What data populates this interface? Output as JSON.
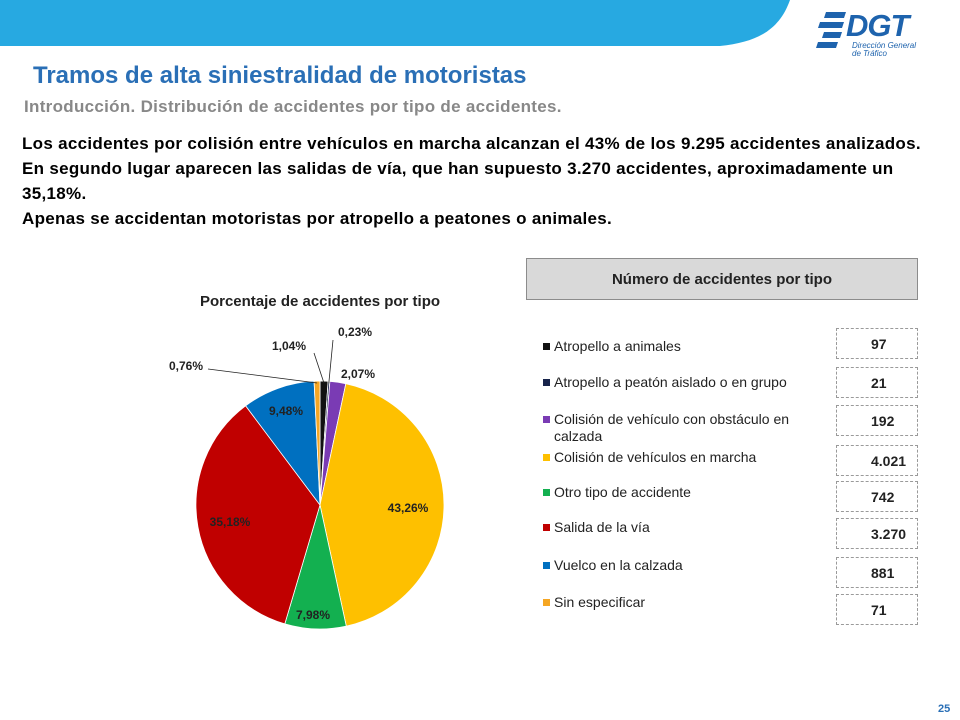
{
  "header": {
    "logo_text": "DGT",
    "logo_sub_1": "Dirección General",
    "logo_sub_2": "de Tráfico",
    "banner_color": "#27a9e1",
    "logo_color": "#1e63ad"
  },
  "title": "Tramos de alta siniestralidad de motoristas",
  "subtitle": "Introducción. Distribución de accidentes por tipo de accidentes.",
  "body": {
    "line1": "Los accidentes por colisión entre vehículos en marcha alcanzan el 43% de los 9.295 accidentes analizados. En segundo lugar aparecen las salidas de vía, que han supuesto 3.270 accidentes, aproximadamente un 35,18%.",
    "line2": "Apenas se accidentan motoristas por atropello a peatones o animales."
  },
  "table_title": "Número de accidentes por tipo",
  "page_number": "25",
  "chart_data": {
    "type": "pie",
    "title": "Porcentaje de accidentes por tipo",
    "legend_position": "right",
    "slices": [
      {
        "label": "Atropello a animales",
        "count": 97,
        "count_label": "97",
        "percent": 1.04,
        "percent_label": "1,04%",
        "color": "#111111"
      },
      {
        "label": "Atropello a peatón aislado o en grupo",
        "count": 21,
        "count_label": "21",
        "percent": 0.23,
        "percent_label": "0,23%",
        "color": "#17234a"
      },
      {
        "label": "Colisión de vehículo con obstáculo en calzada",
        "count": 192,
        "count_label": "192",
        "percent": 2.07,
        "percent_label": "2,07%",
        "color": "#7a3bb4"
      },
      {
        "label": "Colisión de vehículos en marcha",
        "count": 4021,
        "count_label": "4.021",
        "percent": 43.26,
        "percent_label": "43,26%",
        "color": "#fec000"
      },
      {
        "label": "Otro tipo de accidente",
        "count": 742,
        "count_label": "742",
        "percent": 7.98,
        "percent_label": "7,98%",
        "color": "#13b050"
      },
      {
        "label": "Salida de la vía",
        "count": 3270,
        "count_label": "3.270",
        "percent": 35.18,
        "percent_label": "35,18%",
        "color": "#c00000"
      },
      {
        "label": "Vuelco en la calzada",
        "count": 881,
        "count_label": "881",
        "percent": 9.48,
        "percent_label": "9,48%",
        "color": "#0070c0"
      },
      {
        "label": "Sin especificar",
        "count": 71,
        "count_label": "71",
        "percent": 0.76,
        "percent_label": "0,76%",
        "color": "#f5a623"
      }
    ]
  }
}
